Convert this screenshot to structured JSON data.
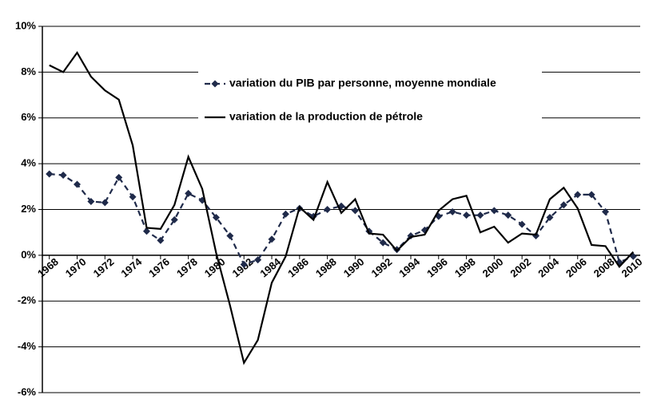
{
  "chart_data": {
    "type": "line",
    "x": [
      1968,
      1969,
      1970,
      1971,
      1972,
      1973,
      1974,
      1975,
      1976,
      1977,
      1978,
      1979,
      1980,
      1981,
      1982,
      1983,
      1984,
      1985,
      1986,
      1987,
      1988,
      1989,
      1990,
      1991,
      1992,
      1993,
      1994,
      1995,
      1996,
      1997,
      1998,
      1999,
      2000,
      2001,
      2002,
      2003,
      2004,
      2005,
      2006,
      2007,
      2008,
      2009,
      2010
    ],
    "series": [
      {
        "name": "variation du PIB par personne, moyenne mondiale",
        "color": "#1f2a4a",
        "dashed": true,
        "markers": true,
        "values": [
          3.55,
          3.5,
          3.1,
          2.35,
          2.3,
          3.4,
          2.55,
          1.05,
          0.65,
          1.55,
          2.7,
          2.4,
          1.65,
          0.85,
          -0.4,
          -0.2,
          0.7,
          1.8,
          2.05,
          1.7,
          2.0,
          2.15,
          1.95,
          1.05,
          0.55,
          0.25,
          0.85,
          1.1,
          1.7,
          1.9,
          1.75,
          1.75,
          1.95,
          1.75,
          1.35,
          0.85,
          1.65,
          2.2,
          2.65,
          2.65,
          1.9,
          -0.3,
          -0.05
        ]
      },
      {
        "name": "variation de la production de pétrole",
        "color": "#000000",
        "dashed": false,
        "markers": false,
        "values": [
          8.3,
          8.0,
          8.85,
          7.8,
          7.2,
          6.8,
          4.8,
          1.2,
          1.15,
          2.2,
          4.3,
          2.9,
          0.1,
          -2.2,
          -4.7,
          -3.7,
          -1.2,
          -0.05,
          2.1,
          1.55,
          3.2,
          1.85,
          2.45,
          0.95,
          0.9,
          0.2,
          0.8,
          0.9,
          1.95,
          2.45,
          2.6,
          1.0,
          1.25,
          0.55,
          0.95,
          0.9,
          2.45,
          2.95,
          2.05,
          0.45,
          0.4,
          -0.5,
          0.15
        ]
      }
    ],
    "xlim": [
      1967.5,
      2010.5
    ],
    "xticks": [
      1968,
      1970,
      1972,
      1974,
      1976,
      1978,
      1980,
      1982,
      1984,
      1986,
      1988,
      1990,
      1992,
      1994,
      1996,
      1998,
      2000,
      2002,
      2004,
      2006,
      2008,
      2010
    ],
    "ylim": [
      -6,
      10
    ],
    "yticks": [
      {
        "value": -6,
        "label": "-6%"
      },
      {
        "value": -4,
        "label": "-4%"
      },
      {
        "value": -2,
        "label": "-2%"
      },
      {
        "value": 0,
        "label": "0%"
      },
      {
        "value": 2,
        "label": "2%"
      },
      {
        "value": 4,
        "label": "4%"
      },
      {
        "value": 6,
        "label": "6%"
      },
      {
        "value": 8,
        "label": "8%"
      },
      {
        "value": 10,
        "label": "10%"
      }
    ],
    "grid": true,
    "legend": "top"
  }
}
